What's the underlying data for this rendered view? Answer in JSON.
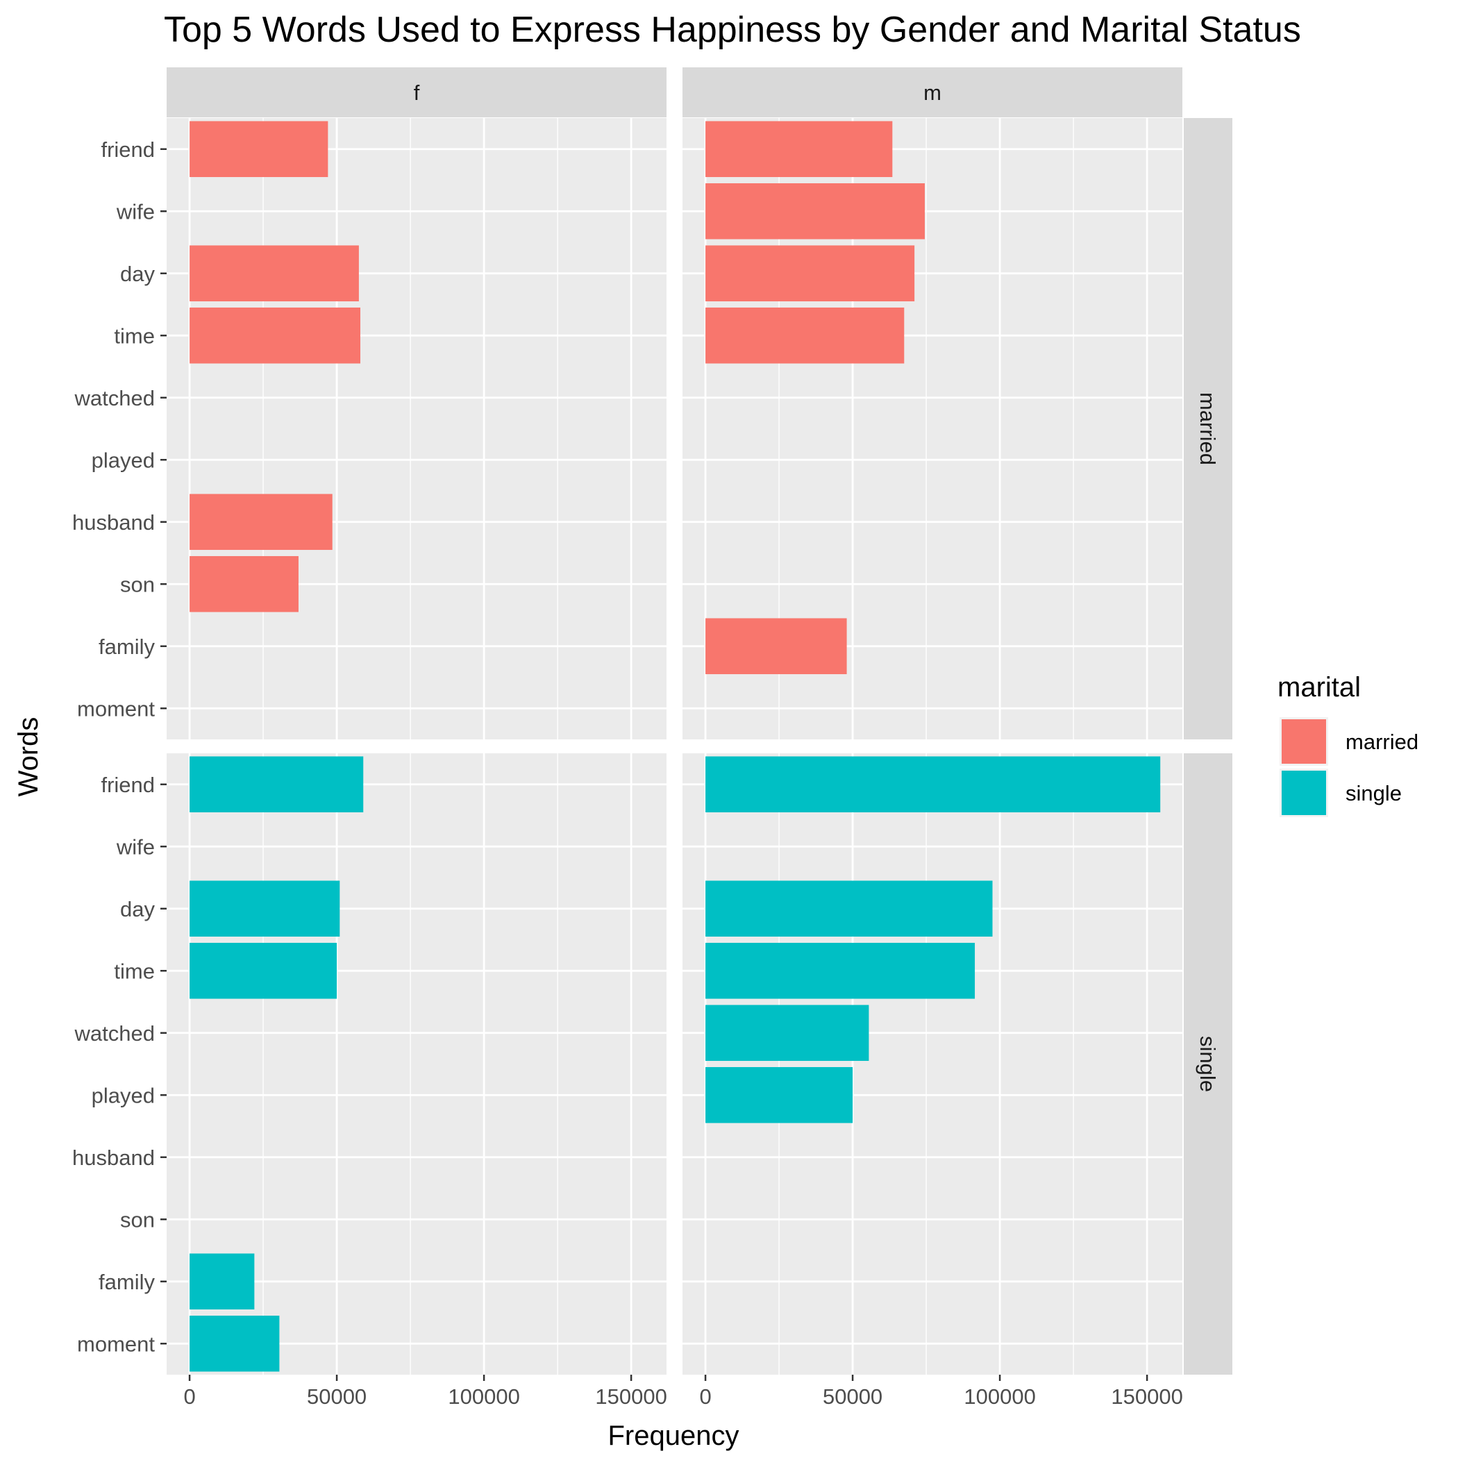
{
  "chart_data": {
    "type": "bar",
    "orientation": "horizontal",
    "title": "Top 5 Words Used to Express Happiness by Gender and Marital Status",
    "xlabel": "Frequency",
    "ylabel": "Words",
    "xlim": [
      -7800,
      162000
    ],
    "x_ticks": [
      0,
      50000,
      100000,
      150000
    ],
    "x_tick_labels": [
      "0",
      "50000",
      "100000",
      "150000"
    ],
    "categories": [
      "friend",
      "wife",
      "day",
      "time",
      "watched",
      "played",
      "husband",
      "son",
      "family",
      "moment"
    ],
    "facet_columns": [
      "f",
      "m"
    ],
    "facet_rows": [
      "married",
      "single"
    ],
    "legend": {
      "title": "marital",
      "position": "right",
      "entries": [
        "married",
        "single"
      ]
    },
    "colors": {
      "married": "#F8766D",
      "single": "#00BFC4"
    },
    "grid": true,
    "panels": [
      {
        "gender": "f",
        "marital": "married",
        "values": {
          "friend": 47000,
          "day": 57500,
          "time": 58000,
          "husband": 48500,
          "son": 37000
        }
      },
      {
        "gender": "m",
        "marital": "married",
        "values": {
          "friend": 63500,
          "wife": 74500,
          "day": 71000,
          "time": 67500,
          "family": 48000
        }
      },
      {
        "gender": "f",
        "marital": "single",
        "values": {
          "friend": 59000,
          "day": 51000,
          "time": 50000,
          "family": 22000,
          "moment": 30500
        }
      },
      {
        "gender": "m",
        "marital": "single",
        "values": {
          "friend": 154500,
          "day": 97500,
          "time": 91500,
          "watched": 55500,
          "played": 50000
        }
      }
    ]
  }
}
